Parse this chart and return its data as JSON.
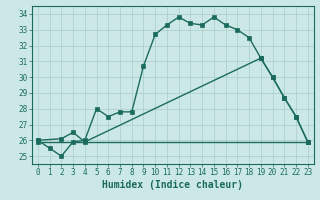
{
  "xlabel": "Humidex (Indice chaleur)",
  "bg_color": "#cce8e6",
  "grid_color": "#aaccca",
  "line_color": "#1a6b5e",
  "xlim": [
    -0.5,
    23.5
  ],
  "ylim": [
    24.5,
    34.5
  ],
  "yticks": [
    25,
    26,
    27,
    28,
    29,
    30,
    31,
    32,
    33,
    34
  ],
  "xticks": [
    0,
    1,
    2,
    3,
    4,
    5,
    6,
    7,
    8,
    9,
    10,
    11,
    12,
    13,
    14,
    15,
    16,
    17,
    18,
    19,
    20,
    21,
    22,
    23
  ],
  "line1_x": [
    0,
    1,
    2,
    3,
    4,
    5,
    6,
    7,
    8,
    9,
    10,
    11,
    12,
    13,
    14,
    15,
    16,
    17,
    18,
    19,
    20,
    21,
    22,
    23
  ],
  "line1_y": [
    26.0,
    25.5,
    25.0,
    25.9,
    26.0,
    28.0,
    27.5,
    27.8,
    27.8,
    30.7,
    32.7,
    33.3,
    33.8,
    33.4,
    33.3,
    33.8,
    33.3,
    33.0,
    32.5,
    31.2,
    30.0,
    28.7,
    27.5,
    25.9
  ],
  "line2_x": [
    0,
    2,
    3,
    4,
    19,
    20,
    21,
    22,
    23
  ],
  "line2_y": [
    26.0,
    26.1,
    26.5,
    25.9,
    31.2,
    30.0,
    28.7,
    27.5,
    25.9
  ],
  "line3_x": [
    0,
    23
  ],
  "line3_y": [
    25.9,
    25.9
  ],
  "marker_size": 2.5,
  "linewidth": 1.0,
  "tick_fontsize": 5.5,
  "xlabel_fontsize": 7
}
